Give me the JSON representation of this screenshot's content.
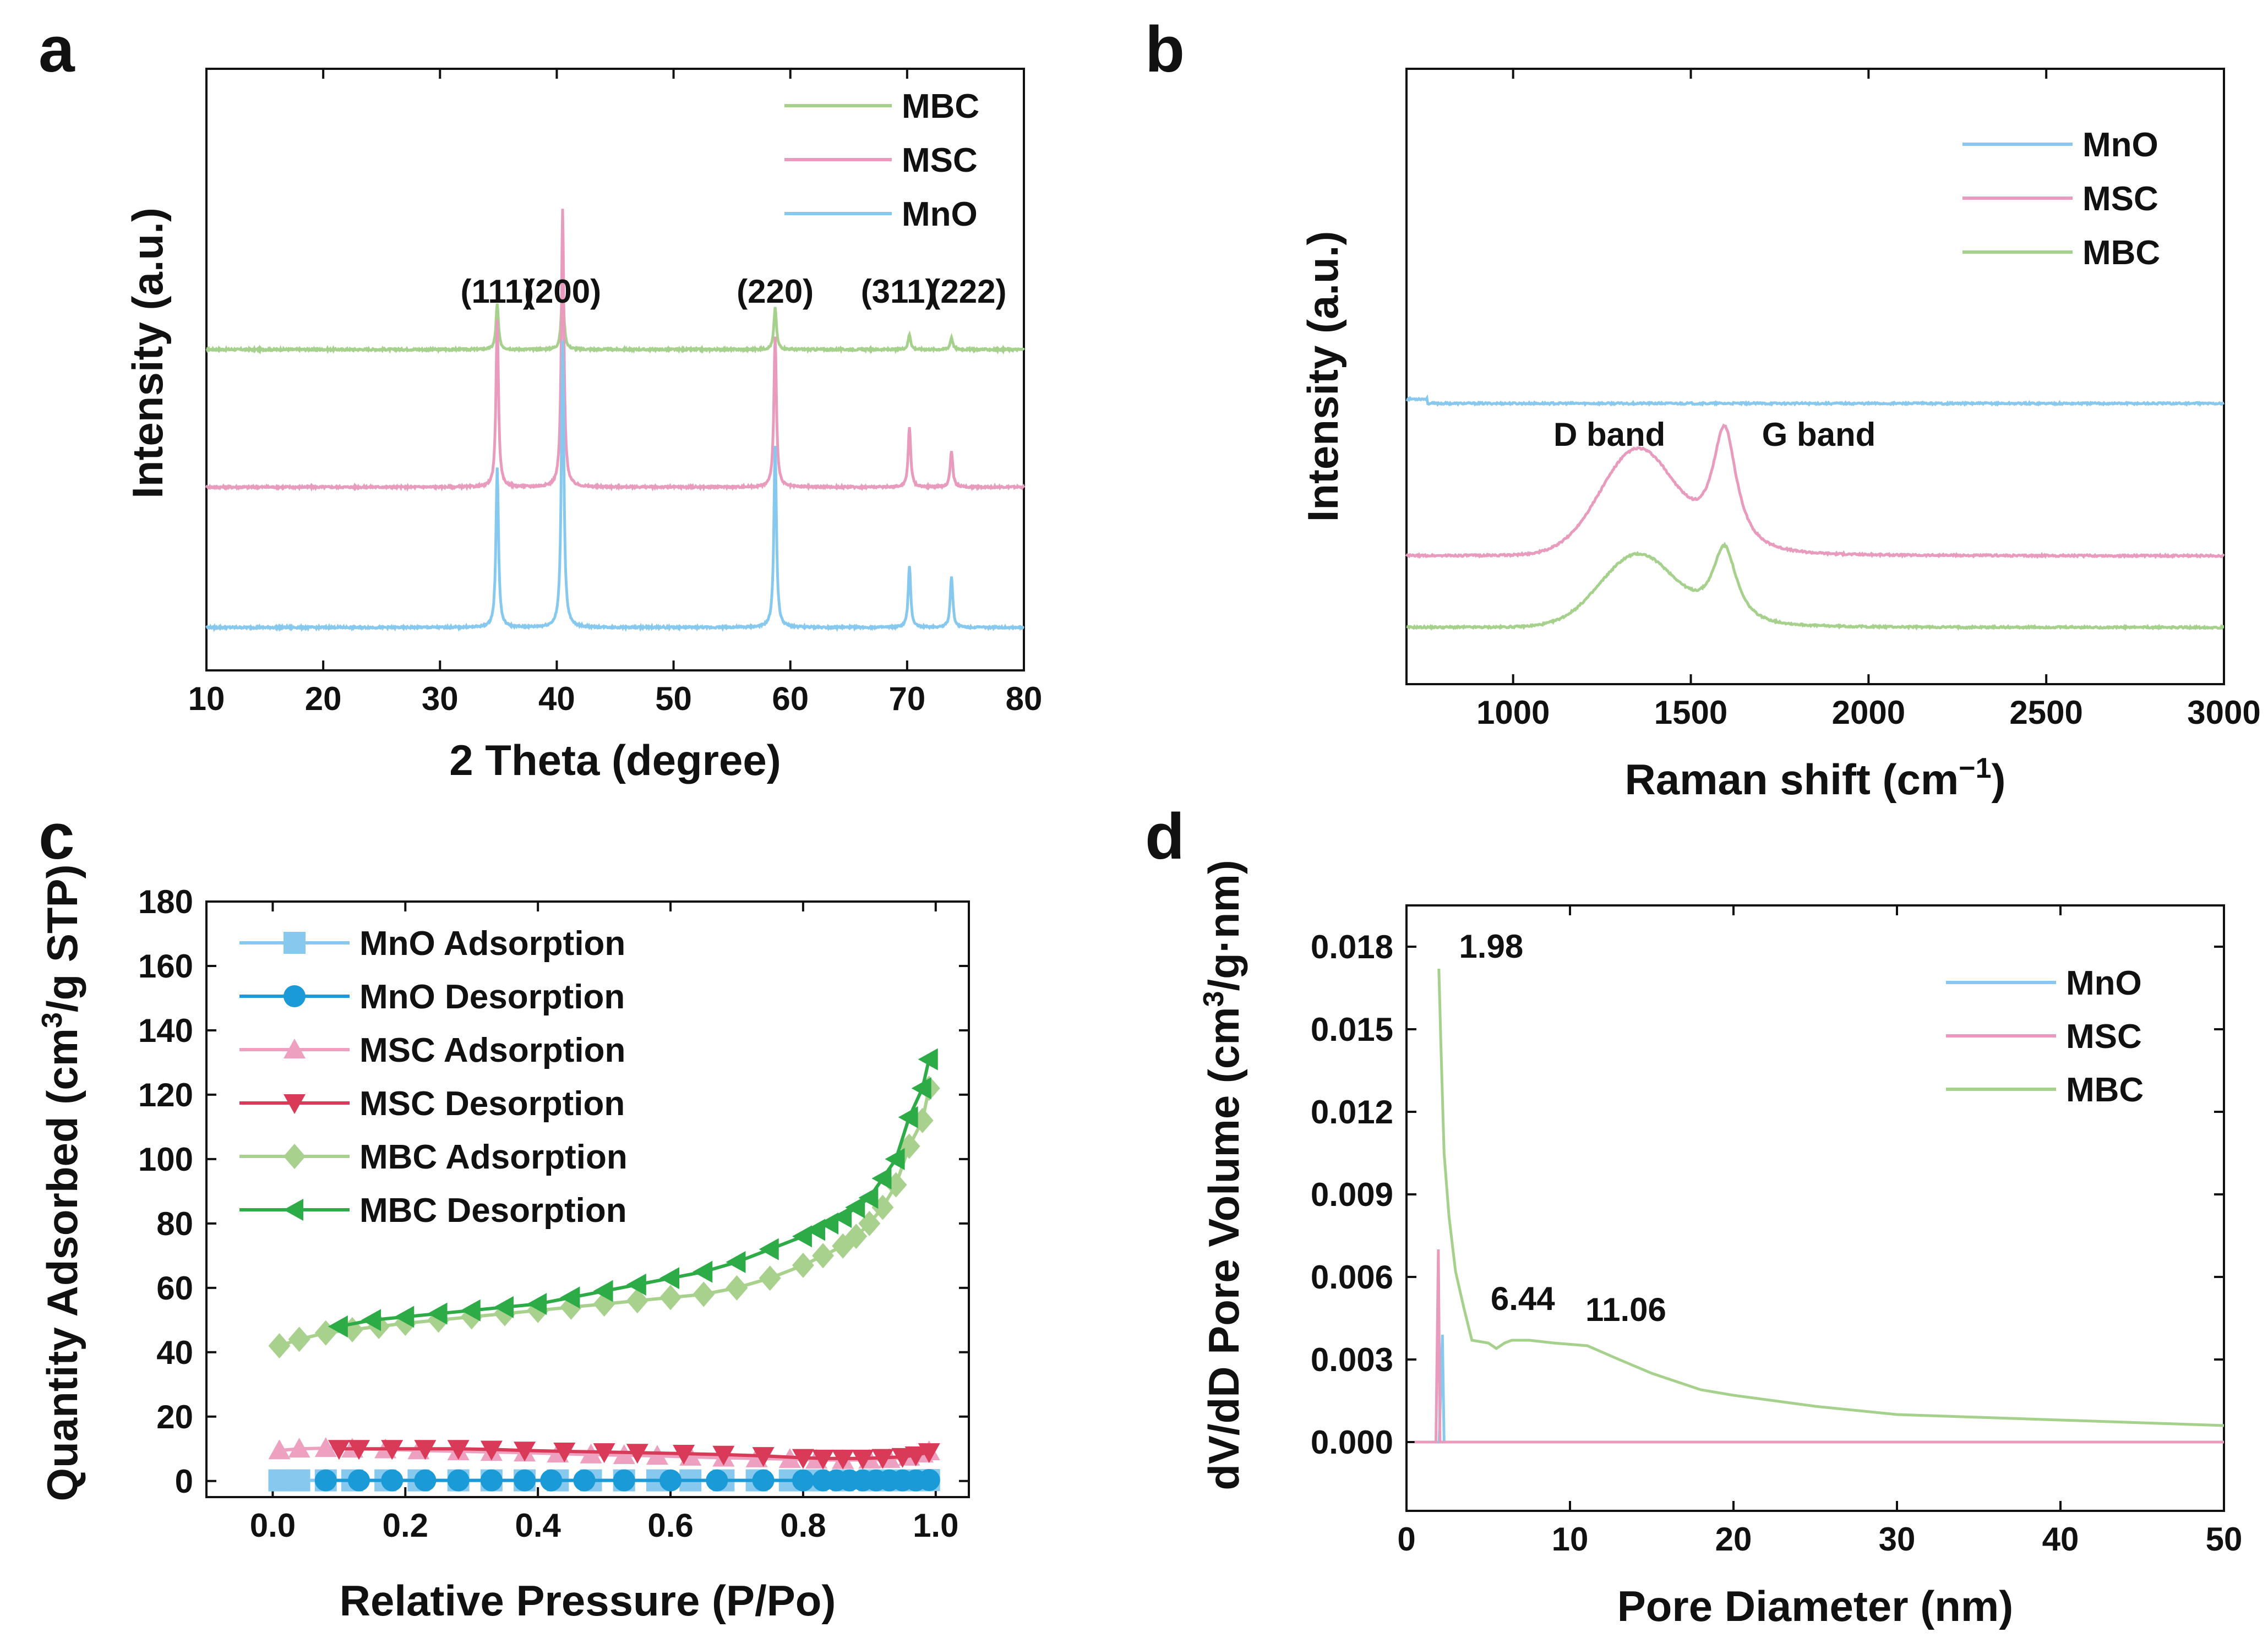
{
  "chart_data": [
    {
      "panel": "a",
      "type": "line",
      "xlabel": "2 Theta (degree)",
      "ylabel": "Intensity (a.u.)",
      "xlim": [
        10,
        80
      ],
      "xticks": [
        10,
        20,
        30,
        40,
        50,
        60,
        70,
        80
      ],
      "y_ticks_shown": false,
      "legend_placement": "top-right",
      "peak_labels": [
        {
          "text": "(111)",
          "x": 34.9
        },
        {
          "text": "(200)",
          "x": 40.5
        },
        {
          "text": "(220)",
          "x": 58.7
        },
        {
          "text": "(311)",
          "x": 70.2
        },
        {
          "text": "(222)",
          "x": 73.8
        }
      ],
      "series": [
        {
          "name": "MBC",
          "color": "#a6d18d",
          "baseline": 2.0,
          "noise": 0.006,
          "peaks": [
            [
              34.9,
              0.15
            ],
            [
              40.5,
              0.22
            ],
            [
              58.7,
              0.14
            ],
            [
              70.2,
              0.05
            ],
            [
              73.8,
              0.04
            ]
          ]
        },
        {
          "name": "MSC",
          "color": "#e89bbd",
          "baseline": 1.0,
          "noise": 0.006,
          "peaks": [
            [
              34.9,
              0.55
            ],
            [
              40.5,
              0.92
            ],
            [
              58.7,
              0.5
            ],
            [
              70.2,
              0.2
            ],
            [
              73.8,
              0.12
            ]
          ]
        },
        {
          "name": "MnO",
          "color": "#87c9ee",
          "baseline": 0.0,
          "noise": 0.006,
          "peaks": [
            [
              34.9,
              0.53
            ],
            [
              40.5,
              0.95
            ],
            [
              58.7,
              0.6
            ],
            [
              70.2,
              0.2
            ],
            [
              73.8,
              0.17
            ]
          ]
        }
      ]
    },
    {
      "panel": "b",
      "type": "line",
      "xlabel": "Raman shift (cm",
      "xlabel_superscript": "−1",
      "xlabel_suffix": ")",
      "ylabel": "Intensity (a.u.)",
      "xlim": [
        700,
        3000
      ],
      "xticks": [
        1000,
        1500,
        2000,
        2500,
        3000
      ],
      "y_ticks_shown": false,
      "legend_placement": "top-right",
      "band_labels": [
        {
          "text": "D band",
          "x": 1240
        },
        {
          "text": "G band",
          "x": 1860
        }
      ],
      "series": [
        {
          "name": "MnO",
          "color": "#87c9ee",
          "baseline": 2.0,
          "noise": 0.012,
          "d": 0.0,
          "g": 0.0
        },
        {
          "name": "MSC",
          "color": "#e89bbd",
          "baseline": 0.62,
          "noise": 0.012,
          "d": 0.7,
          "g": 0.83
        },
        {
          "name": "MBC",
          "color": "#a6d18d",
          "baseline": 0.0,
          "noise": 0.012,
          "d": 0.48,
          "g": 0.52
        }
      ]
    },
    {
      "panel": "c",
      "type": "line",
      "xlabel": "Relative Pressure (P/Po)",
      "ylabel": "Quantity Adsorbed (cm",
      "ylabel_superscript": "3",
      "ylabel_suffix": "/g STP)",
      "xlim": [
        -0.1,
        1.05
      ],
      "ylim": [
        -5,
        180
      ],
      "xticks": [
        "0.0",
        "0.2",
        "0.4",
        "0.6",
        "0.8",
        "1.0"
      ],
      "yticks": [
        "0",
        "20",
        "40",
        "60",
        "80",
        "100",
        "120",
        "140",
        "160",
        "180"
      ],
      "legend_placement": "top-left",
      "series": [
        {
          "name": "MnO Adsorption",
          "color": "#87c9ee",
          "marker": "square",
          "x": [
            0.01,
            0.04,
            0.08,
            0.12,
            0.17,
            0.22,
            0.28,
            0.33,
            0.38,
            0.43,
            0.48,
            0.53,
            0.58,
            0.63,
            0.68,
            0.73,
            0.78,
            0.82,
            0.86,
            0.9,
            0.93,
            0.96,
            0.98,
            0.99
          ],
          "y": [
            0.2,
            0.2,
            0.2,
            0.2,
            0.2,
            0.2,
            0.2,
            0.2,
            0.2,
            0.2,
            0.2,
            0.2,
            0.2,
            0.2,
            0.2,
            0.2,
            0.2,
            0.2,
            0.2,
            0.2,
            0.2,
            0.2,
            0.2,
            0.3
          ]
        },
        {
          "name": "MnO Desorption",
          "color": "#1a9ad6",
          "marker": "circle",
          "x": [
            0.99,
            0.97,
            0.95,
            0.93,
            0.91,
            0.89,
            0.87,
            0.85,
            0.83,
            0.8,
            0.74,
            0.67,
            0.6,
            0.53,
            0.47,
            0.42,
            0.38,
            0.33,
            0.28,
            0.23,
            0.18,
            0.13,
            0.08
          ],
          "y": [
            0.3,
            0.2,
            0.2,
            0.2,
            0.2,
            0.2,
            0.2,
            0.2,
            0.2,
            0.2,
            0.2,
            0.2,
            0.2,
            0.2,
            0.2,
            0.2,
            0.2,
            0.2,
            0.2,
            0.2,
            0.2,
            0.2,
            0.2
          ]
        },
        {
          "name": "MSC Adsorption",
          "color": "#eea0c0",
          "marker": "triangle-up",
          "x": [
            0.01,
            0.04,
            0.08,
            0.12,
            0.17,
            0.22,
            0.28,
            0.33,
            0.38,
            0.43,
            0.48,
            0.53,
            0.58,
            0.63,
            0.68,
            0.73,
            0.78,
            0.82,
            0.86,
            0.9,
            0.93,
            0.96,
            0.98,
            0.99
          ],
          "y": [
            9.5,
            10.0,
            10.2,
            10.0,
            9.8,
            9.5,
            9.2,
            9.0,
            8.8,
            8.5,
            8.2,
            8.0,
            7.8,
            7.5,
            7.2,
            7.0,
            6.8,
            6.6,
            6.5,
            6.6,
            6.8,
            7.5,
            8.5,
            9.2
          ]
        },
        {
          "name": "MSC Desorption",
          "color": "#d93a57",
          "marker": "triangle-down",
          "x": [
            0.99,
            0.97,
            0.95,
            0.92,
            0.89,
            0.86,
            0.83,
            0.8,
            0.74,
            0.68,
            0.62,
            0.55,
            0.5,
            0.44,
            0.38,
            0.33,
            0.28,
            0.23,
            0.18,
            0.13,
            0.1
          ],
          "y": [
            9.0,
            8.0,
            7.5,
            7.2,
            7.0,
            7.0,
            7.0,
            7.2,
            7.8,
            8.2,
            8.5,
            8.8,
            9.0,
            9.2,
            9.5,
            9.8,
            10.0,
            10.0,
            10.0,
            10.0,
            10.0
          ]
        },
        {
          "name": "MBC Adsorption",
          "color": "#a9d18e",
          "marker": "diamond",
          "x": [
            0.01,
            0.04,
            0.08,
            0.12,
            0.16,
            0.2,
            0.25,
            0.3,
            0.35,
            0.4,
            0.45,
            0.5,
            0.55,
            0.6,
            0.65,
            0.7,
            0.75,
            0.8,
            0.83,
            0.86,
            0.88,
            0.9,
            0.92,
            0.94,
            0.96,
            0.98,
            0.99
          ],
          "y": [
            42,
            44,
            46,
            47,
            48,
            49,
            50,
            51,
            52,
            53,
            54,
            55,
            56,
            57,
            58,
            60,
            63,
            67,
            70,
            73,
            76,
            80,
            85,
            92,
            104,
            112,
            122
          ]
        },
        {
          "name": "MBC Desorption",
          "color": "#2cab47",
          "marker": "triangle-left",
          "x": [
            0.99,
            0.98,
            0.96,
            0.94,
            0.92,
            0.9,
            0.88,
            0.86,
            0.84,
            0.82,
            0.8,
            0.75,
            0.7,
            0.65,
            0.6,
            0.55,
            0.5,
            0.45,
            0.4,
            0.35,
            0.3,
            0.25,
            0.2,
            0.15,
            0.1
          ],
          "y": [
            131,
            122,
            113,
            100,
            94,
            88,
            85,
            82,
            80,
            78,
            76,
            72,
            68,
            65,
            63,
            61,
            59,
            57,
            55,
            54,
            53,
            52,
            51,
            50,
            48
          ]
        }
      ]
    },
    {
      "panel": "d",
      "type": "line",
      "xlabel": "Pore Diameter (nm)",
      "ylabel": "dV/dD Pore Volume (cm",
      "ylabel_superscript": "3",
      "ylabel_suffix": "/g·nm)",
      "xlim": [
        0,
        50
      ],
      "ylim": [
        -0.0025,
        0.0195
      ],
      "xticks": [
        "0",
        "10",
        "20",
        "30",
        "40",
        "50"
      ],
      "yticks": [
        "0.000",
        "0.003",
        "0.006",
        "0.009",
        "0.012",
        "0.015",
        "0.018"
      ],
      "legend_placement": "top-right",
      "annotations": [
        {
          "text": "1.98",
          "x": 1.98,
          "y": 0.0172
        },
        {
          "text": "6.44",
          "x": 6.44,
          "y": 0.0037
        },
        {
          "text": "11.06",
          "x": 11.06,
          "y": 0.0035
        }
      ],
      "series": [
        {
          "name": "MnO",
          "color": "#87c9ee",
          "x": [
            0.5,
            2.0,
            2.2,
            2.3,
            2.4,
            50
          ],
          "y": [
            0,
            0,
            0.0039,
            0.0,
            0,
            0
          ]
        },
        {
          "name": "MSC",
          "color": "#e89bbd",
          "x": [
            0.5,
            1.8,
            1.95,
            2.05,
            2.2,
            50
          ],
          "y": [
            0,
            0,
            0.007,
            0.0,
            0,
            0
          ]
        },
        {
          "name": "MBC",
          "color": "#a6d18d",
          "x": [
            1.98,
            2.1,
            2.3,
            2.6,
            3.0,
            3.5,
            4.0,
            5.0,
            5.5,
            6.0,
            6.44,
            7.5,
            9.0,
            11.06,
            13,
            15,
            18,
            20,
            25,
            30,
            35,
            40,
            45,
            50
          ],
          "y": [
            0.0172,
            0.0145,
            0.0105,
            0.0082,
            0.0062,
            0.0049,
            0.0037,
            0.0036,
            0.0034,
            0.0036,
            0.0037,
            0.0037,
            0.0036,
            0.0035,
            0.003,
            0.0025,
            0.0019,
            0.0017,
            0.0013,
            0.001,
            0.0009,
            0.0008,
            0.0007,
            0.0006
          ]
        }
      ]
    }
  ]
}
